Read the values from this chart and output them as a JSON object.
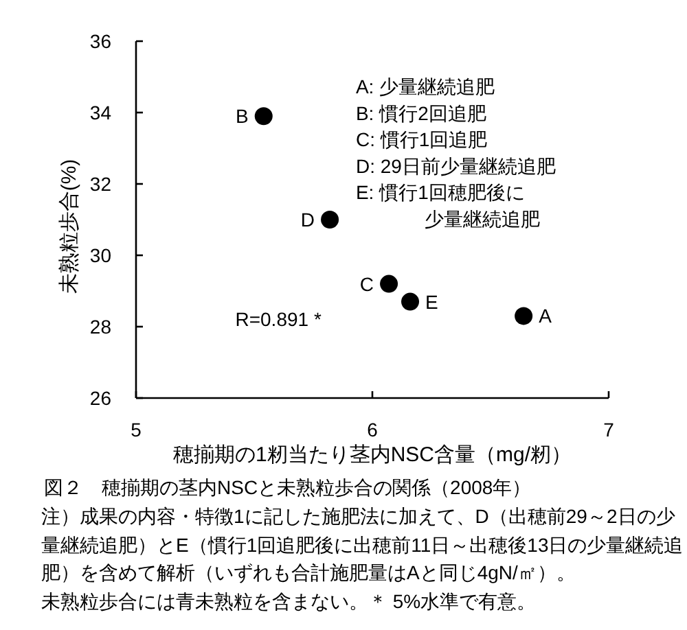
{
  "chart_data": {
    "type": "scatter",
    "title": "図２　穂揃期の茎内NSCと未熟粒歩合の関係（2008年）",
    "xlabel": "穂揃期の1籾当たり茎内NSC含量（mg/籾）",
    "ylabel": "未熟粒歩合(%)",
    "x": [
      6.64,
      5.54,
      6.07,
      5.82,
      6.16
    ],
    "values": [
      28.3,
      33.9,
      29.2,
      31.0,
      28.7
    ],
    "color": "#000000",
    "marker": "circle",
    "xlim": [
      5,
      7
    ],
    "xticks": [
      5,
      6,
      7
    ],
    "ylim": [
      26,
      36
    ],
    "yticks": [
      26,
      28,
      30,
      32,
      34,
      36
    ],
    "annotations": [
      {
        "text": "A",
        "x": 6.64,
        "y": 28.3
      },
      {
        "text": "B",
        "x": 5.54,
        "y": 33.9
      },
      {
        "text": "C",
        "x": 6.07,
        "y": 29.2
      },
      {
        "text": "D",
        "x": 5.82,
        "y": 31.0
      },
      {
        "text": "E",
        "x": 6.16,
        "y": 28.7
      },
      "A: 少量継続追肥",
      "B: 慣行2回追肥",
      "C: 慣行1回追肥",
      "D: 29日前少量継続追肥",
      "E: 慣行1回穂肥後に",
      "少量継続追肥",
      "R=0.891 *",
      "注）成果の内容・特徴1に記した施肥法に加えて、D（出穂前29～2日の少量継続追肥）とE（慣行1回追肥後に出穂前11日～出穂後13日の少量継続追肥）を含めて解析（いずれも合計施肥量はAと同じ4gN/㎡）。",
      "未熟粒歩合には青未熟粒を含まない。＊ 5%水準で有意。"
    ]
  }
}
